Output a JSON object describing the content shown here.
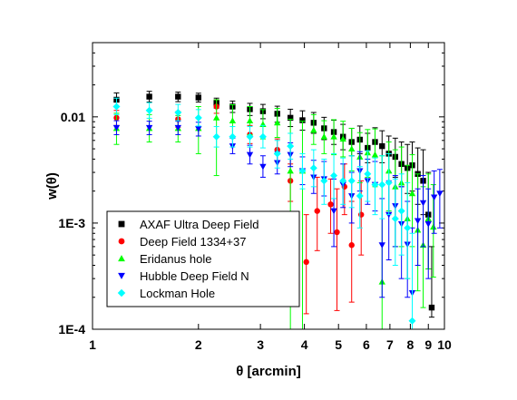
{
  "chart_data": {
    "type": "scatter",
    "xlabel": "θ [arcmin]",
    "ylabel": "w(θ)",
    "xscale": "log",
    "yscale": "log",
    "xlim": [
      1,
      10
    ],
    "ylim": [
      0.0001,
      0.05
    ],
    "grid": false,
    "legend_position": "bottom-left",
    "x_ticks": [
      {
        "value": 1,
        "label": "1"
      },
      {
        "value": 2,
        "label": "2"
      },
      {
        "value": 3,
        "label": "3"
      },
      {
        "value": 4,
        "label": "4"
      },
      {
        "value": 5,
        "label": "5"
      },
      {
        "value": 6,
        "label": "6"
      },
      {
        "value": 7,
        "label": "7"
      },
      {
        "value": 8,
        "label": "8"
      },
      {
        "value": 9,
        "label": "9"
      },
      {
        "value": 10,
        "label": "10"
      }
    ],
    "y_ticks": [
      {
        "value": 0.0001,
        "label": "1E-4"
      },
      {
        "value": 0.001,
        "label": "1E-3"
      },
      {
        "value": 0.01,
        "label": "0.01"
      }
    ],
    "series": [
      {
        "name": "AXAF Ultra Deep Field",
        "marker": "square",
        "color": "#000000",
        "points": [
          [
            1.17,
            0.0145,
            0.0125,
            0.0168
          ],
          [
            1.45,
            0.0155,
            0.0138,
            0.0174
          ],
          [
            1.75,
            0.0155,
            0.0139,
            0.0171
          ],
          [
            2.0,
            0.0152,
            0.0138,
            0.0167
          ],
          [
            2.25,
            0.0135,
            0.0121,
            0.015
          ],
          [
            2.5,
            0.0125,
            0.011,
            0.0141
          ],
          [
            2.8,
            0.0118,
            0.0103,
            0.0134
          ],
          [
            3.05,
            0.0113,
            0.0096,
            0.0131
          ],
          [
            3.35,
            0.0107,
            0.0089,
            0.0126
          ],
          [
            3.65,
            0.0098,
            0.0081,
            0.0118
          ],
          [
            3.95,
            0.0093,
            0.0075,
            0.0114
          ],
          [
            4.25,
            0.0088,
            0.007,
            0.011
          ],
          [
            4.55,
            0.0078,
            0.0061,
            0.0099
          ],
          [
            4.85,
            0.0072,
            0.0055,
            0.0093
          ],
          [
            5.15,
            0.0065,
            0.0049,
            0.0085
          ],
          [
            5.45,
            0.0058,
            0.0043,
            0.0078
          ],
          [
            5.75,
            0.0061,
            0.0045,
            0.0082
          ],
          [
            6.05,
            0.0051,
            0.0037,
            0.007
          ],
          [
            6.35,
            0.0058,
            0.0042,
            0.0079
          ],
          [
            6.65,
            0.0053,
            0.0037,
            0.0074
          ],
          [
            6.95,
            0.0045,
            0.003,
            0.0066
          ],
          [
            7.25,
            0.0042,
            0.0027,
            0.0063
          ],
          [
            7.55,
            0.0036,
            0.0022,
            0.0058
          ],
          [
            7.85,
            0.0033,
            0.0019,
            0.0055
          ],
          [
            8.1,
            0.0035,
            0.002,
            0.0058
          ],
          [
            8.4,
            0.0029,
            0.0015,
            0.0051
          ],
          [
            8.7,
            0.0025,
            0.0012,
            0.0049
          ],
          [
            9.0,
            0.0012,
            0.00037,
            0.003
          ],
          [
            9.2,
            0.00016,
            0.00013,
            0.0006
          ]
        ]
      },
      {
        "name": "Deep Field 1334+37",
        "marker": "circle",
        "color": "#ff0000",
        "points": [
          [
            1.17,
            0.0098,
            0.0083,
            0.0115
          ],
          [
            1.75,
            0.0095,
            0.008,
            0.0112
          ],
          [
            2.25,
            0.0125,
            0.0108,
            0.0145
          ],
          [
            2.8,
            0.0068,
            0.0056,
            0.0083
          ],
          [
            3.35,
            0.0049,
            0.0038,
            0.0062
          ],
          [
            3.65,
            0.0025,
            0.0016,
            0.0036
          ],
          [
            4.05,
            0.00043,
            0.00014,
            0.0012
          ],
          [
            4.35,
            0.0013,
            0.00055,
            0.0027
          ],
          [
            4.75,
            0.0015,
            0.0008,
            0.0026
          ],
          [
            4.95,
            0.00082,
            0.00015,
            0.0021
          ],
          [
            5.2,
            0.0022,
            0.0012,
            0.0036
          ],
          [
            5.45,
            0.00062,
            0.00018,
            0.0016
          ],
          [
            5.8,
            0.0012,
            0.0005,
            0.0025
          ]
        ]
      },
      {
        "name": "Eridanus hole",
        "marker": "triangle-up",
        "color": "#00ff00",
        "points": [
          [
            1.17,
            0.0078,
            0.0055,
            0.0108
          ],
          [
            1.45,
            0.0078,
            0.0058,
            0.0105
          ],
          [
            1.75,
            0.0078,
            0.0058,
            0.0103
          ],
          [
            2.0,
            0.0078,
            0.0045,
            0.0125
          ],
          [
            2.25,
            0.0098,
            0.0028,
            0.0145
          ],
          [
            2.5,
            0.0092,
            0.0065,
            0.013
          ],
          [
            2.8,
            0.0092,
            0.0068,
            0.0125
          ],
          [
            3.05,
            0.0085,
            0.0062,
            0.0117
          ],
          [
            3.35,
            0.0088,
            0.0064,
            0.012
          ],
          [
            3.65,
            0.0031,
            0.0001,
            0.0095
          ],
          [
            3.95,
            0.0031,
            0.0001,
            0.0091
          ],
          [
            4.25,
            0.0075,
            0.0055,
            0.0105
          ],
          [
            4.55,
            0.0065,
            0.0045,
            0.0092
          ],
          [
            4.85,
            0.0065,
            0.0044,
            0.0094
          ],
          [
            5.15,
            0.0062,
            0.0042,
            0.0091
          ],
          [
            5.45,
            0.005,
            0.0031,
            0.0078
          ],
          [
            5.75,
            0.0042,
            0.0024,
            0.0071
          ],
          [
            6.05,
            0.0046,
            0.0027,
            0.0076
          ],
          [
            6.35,
            0.0044,
            0.0022,
            0.0077
          ],
          [
            6.65,
            0.00028,
            0.0001,
            0.0043
          ],
          [
            6.95,
            0.0031,
            0.0013,
            0.0058
          ],
          [
            7.25,
            0.0022,
            0.0006,
            0.0049
          ],
          [
            7.55,
            0.0024,
            0.0006,
            0.0052
          ],
          [
            7.85,
            0.0011,
            0.0003,
            0.0035
          ],
          [
            8.1,
            0.0019,
            0.0006,
            0.0044
          ],
          [
            8.4,
            0.00086,
            0.00023,
            0.0029
          ],
          [
            8.7,
            0.00062,
            0.00016,
            0.0022
          ],
          [
            9.0,
            0.0011,
            0.00037,
            0.0029
          ],
          [
            9.3,
            0.00092,
            0.00031,
            0.0023
          ]
        ]
      },
      {
        "name": "Hubble Deep Field N",
        "marker": "triangle-down",
        "color": "#0000ff",
        "points": [
          [
            1.17,
            0.0079,
            0.0068,
            0.0092
          ],
          [
            1.45,
            0.0079,
            0.0068,
            0.0091
          ],
          [
            1.75,
            0.0079,
            0.0068,
            0.0091
          ],
          [
            2.0,
            0.0077,
            0.0066,
            0.0089
          ],
          [
            2.5,
            0.0053,
            0.0045,
            0.0063
          ],
          [
            2.8,
            0.0044,
            0.0036,
            0.0054
          ],
          [
            3.05,
            0.0034,
            0.0027,
            0.0043
          ],
          [
            3.35,
            0.0037,
            0.0029,
            0.0047
          ],
          [
            3.65,
            0.0044,
            0.0034,
            0.0057
          ],
          [
            3.95,
            0.0031,
            0.0023,
            0.0042
          ],
          [
            4.25,
            0.0027,
            0.0019,
            0.0039
          ],
          [
            4.55,
            0.0026,
            0.0018,
            0.0038
          ],
          [
            4.85,
            0.0013,
            0.0006,
            0.0026
          ],
          [
            5.15,
            0.0023,
            0.0014,
            0.0036
          ],
          [
            5.45,
            0.0018,
            0.001,
            0.003
          ],
          [
            5.75,
            0.0031,
            0.002,
            0.0047
          ],
          [
            6.05,
            0.0025,
            0.0015,
            0.004
          ],
          [
            6.35,
            0.0023,
            0.0013,
            0.0038
          ],
          [
            6.65,
            0.00062,
            0.0002,
            0.0017
          ],
          [
            6.95,
            0.0012,
            0.00045,
            0.0025
          ],
          [
            7.25,
            0.00145,
            0.0006,
            0.0028
          ],
          [
            7.55,
            0.00098,
            0.0003,
            0.0022
          ],
          [
            7.85,
            0.00063,
            0.0002,
            0.0016
          ],
          [
            8.1,
            0.00022,
            0.0001,
            0.0009
          ],
          [
            8.4,
            0.00105,
            0.0004,
            0.0021
          ],
          [
            8.7,
            0.00155,
            0.0006,
            0.0028
          ],
          [
            9.0,
            0.00098,
            0.0003,
            0.0021
          ],
          [
            9.35,
            0.00175,
            0.0008,
            0.0031
          ],
          [
            9.7,
            0.0019,
            0.0009,
            0.0032
          ]
        ]
      },
      {
        "name": "Lockman Hole",
        "marker": "diamond",
        "color": "#00ffff",
        "points": [
          [
            1.17,
            0.0125,
            0.0105,
            0.015
          ],
          [
            1.45,
            0.0115,
            0.0097,
            0.0136
          ],
          [
            1.75,
            0.011,
            0.0092,
            0.0131
          ],
          [
            2.0,
            0.0098,
            0.0082,
            0.0117
          ],
          [
            2.25,
            0.0065,
            0.0052,
            0.0081
          ],
          [
            2.5,
            0.0065,
            0.0052,
            0.0081
          ],
          [
            2.8,
            0.0065,
            0.0052,
            0.0081
          ],
          [
            3.05,
            0.0065,
            0.0051,
            0.0083
          ],
          [
            3.35,
            0.0045,
            0.0033,
            0.006
          ],
          [
            3.65,
            0.0053,
            0.004,
            0.007
          ],
          [
            3.95,
            0.0031,
            0.0021,
            0.0045
          ],
          [
            4.25,
            0.0033,
            0.0022,
            0.0049
          ],
          [
            4.55,
            0.0025,
            0.0015,
            0.004
          ],
          [
            4.85,
            0.0028,
            0.0017,
            0.0045
          ],
          [
            5.15,
            0.0025,
            0.0015,
            0.0041
          ],
          [
            5.45,
            0.0025,
            0.0014,
            0.0043
          ],
          [
            5.75,
            0.0018,
            0.0009,
            0.0034
          ],
          [
            6.05,
            0.0029,
            0.0016,
            0.0048
          ],
          [
            6.35,
            0.0023,
            0.0012,
            0.0041
          ],
          [
            6.65,
            0.0023,
            0.0011,
            0.0043
          ],
          [
            6.95,
            0.0024,
            0.0012,
            0.0045
          ],
          [
            7.25,
            0.0011,
            0.0004,
            0.0026
          ],
          [
            7.55,
            0.0013,
            0.0005,
            0.0029
          ],
          [
            7.85,
            0.0009,
            0.0003,
            0.0024
          ],
          [
            8.1,
            0.00012,
            0.0001,
            0.0008
          ]
        ]
      }
    ]
  }
}
